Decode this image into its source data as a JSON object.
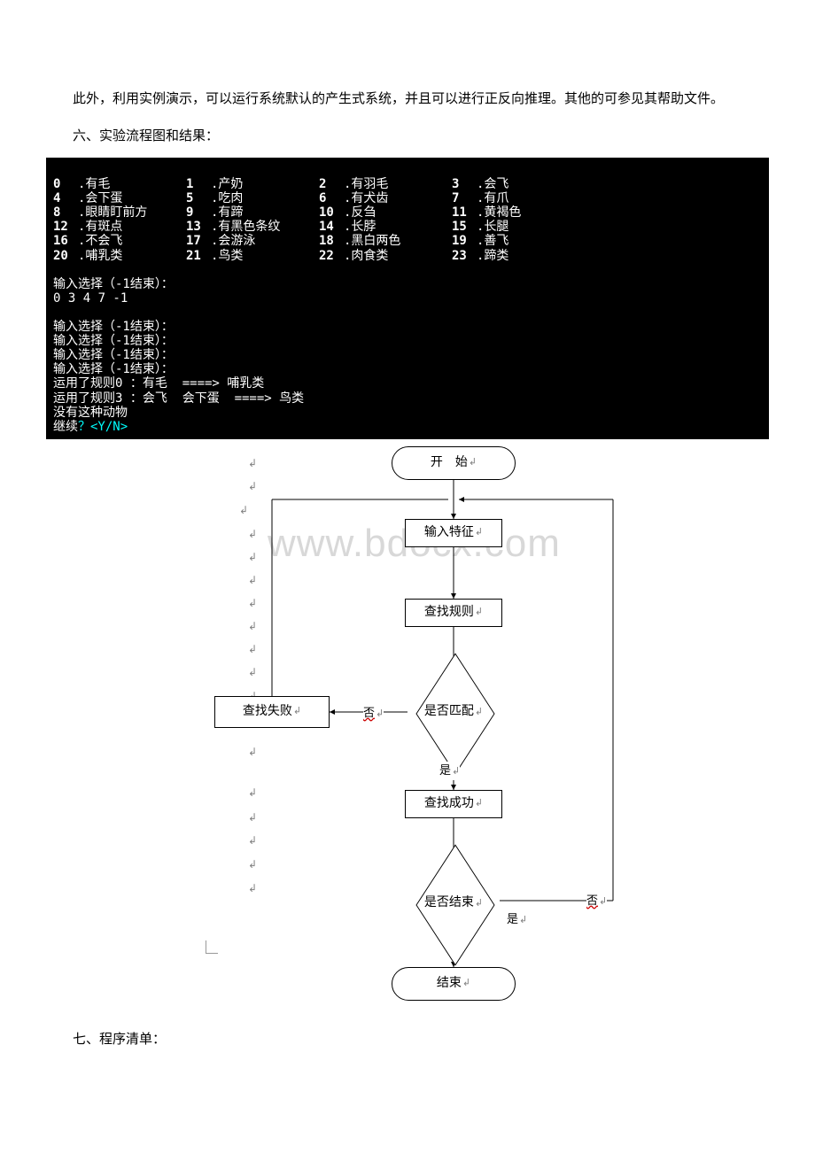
{
  "text": {
    "para1": "此外，利用实例演示，可以运行系统默认的产生式系统，并且可以进行正反向推理。其他的可参见其帮助文件。",
    "sec6": "六、实验流程图和结果：",
    "sec7": "七、程序清单："
  },
  "console": {
    "items": [
      {
        "n": "0",
        "t": ".有毛"
      },
      {
        "n": "1",
        "t": ".产奶"
      },
      {
        "n": "2",
        "t": ".有羽毛"
      },
      {
        "n": "3",
        "t": ".会飞"
      },
      {
        "n": "4",
        "t": ".会下蛋"
      },
      {
        "n": "5",
        "t": ".吃肉"
      },
      {
        "n": "6",
        "t": ".有犬齿"
      },
      {
        "n": "7",
        "t": ".有爪"
      },
      {
        "n": "8",
        "t": ".眼睛盯前方"
      },
      {
        "n": "9",
        "t": ".有蹄"
      },
      {
        "n": "10",
        "t": ".反刍"
      },
      {
        "n": "11",
        "t": ".黄褐色"
      },
      {
        "n": "12",
        "t": ".有斑点"
      },
      {
        "n": "13",
        "t": ".有黑色条纹"
      },
      {
        "n": "14",
        "t": ".长脖"
      },
      {
        "n": "15",
        "t": ".长腿"
      },
      {
        "n": "16",
        "t": ".不会飞"
      },
      {
        "n": "17",
        "t": ".会游泳"
      },
      {
        "n": "18",
        "t": ".黑白两色"
      },
      {
        "n": "19",
        "t": ".善飞"
      },
      {
        "n": "20",
        "t": ".哺乳类"
      },
      {
        "n": "21",
        "t": ".鸟类"
      },
      {
        "n": "22",
        "t": ".肉食类"
      },
      {
        "n": "23",
        "t": ".蹄类"
      }
    ],
    "prompt1": "输入选择（-1结束）：",
    "input1": "0 3 4 7 -1",
    "lines2": [
      "输入选择（-1结束）：",
      "输入选择（-1结束）：",
      "输入选择（-1结束）：",
      "输入选择（-1结束）：",
      "运用了规则0 ：有毛  ====> 哺乳类",
      "运用了规则3 ：会飞  会下蛋  ====> 鸟类",
      "没有这种动物",
      "继续？<Y/N>"
    ]
  },
  "flowchart": {
    "start": "开　始",
    "input": "输入特征",
    "search": "查找规则",
    "match": "是否匹配",
    "fail": "查找失败",
    "succ": "查找成功",
    "end_q": "是否结束",
    "end": "结束",
    "yes": "是",
    "no": "否",
    "watermark": "www.bdocx.com",
    "colors": {
      "line": "#000000",
      "bg": "#ffffff",
      "watermark": "#d8d8d8",
      "ret": "#808080"
    }
  }
}
